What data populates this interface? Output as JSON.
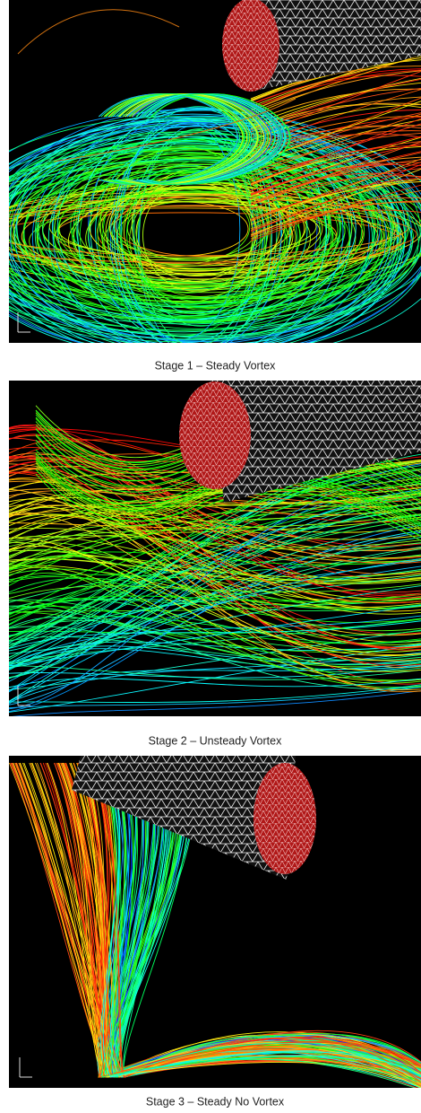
{
  "figure": {
    "panels": [
      {
        "caption": "Stage 1 – Steady Vortex"
      },
      {
        "caption": "Stage 2 – Unsteady Vortex"
      },
      {
        "caption": "Stage 3 – Steady No Vortex"
      }
    ]
  }
}
